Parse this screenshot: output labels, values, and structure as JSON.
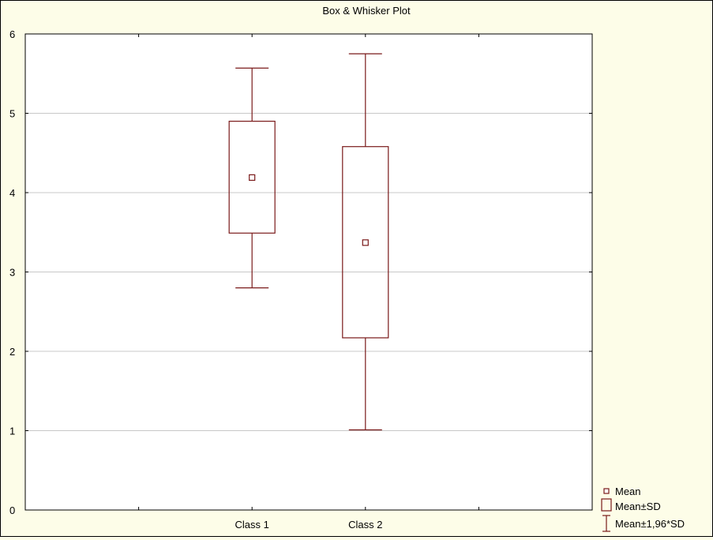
{
  "chart_data": {
    "type": "box",
    "title": "Box & Whisker Plot",
    "xlabel": "",
    "ylabel": "",
    "categories": [
      "Class 1",
      "Class 2"
    ],
    "ylim": [
      0,
      6
    ],
    "yticks": [
      0,
      1,
      2,
      3,
      4,
      5,
      6
    ],
    "grid": true,
    "series": [
      {
        "category": "Class 1",
        "mean": 4.19,
        "sd_low": 3.49,
        "sd_high": 4.9,
        "whisker_low": 2.8,
        "whisker_high": 5.57
      },
      {
        "category": "Class 2",
        "mean": 3.37,
        "sd_low": 2.17,
        "sd_high": 4.58,
        "whisker_low": 1.01,
        "whisker_high": 5.75
      }
    ],
    "legend": {
      "placement": "bottom-right",
      "items": [
        "Mean",
        "Mean±SD",
        "Mean±1,96*SD"
      ]
    },
    "colors": {
      "mark": "#7a1a1a",
      "background": "#fdfde8",
      "plot_area": "#ffffff",
      "grid": "#c8c8c8"
    }
  }
}
